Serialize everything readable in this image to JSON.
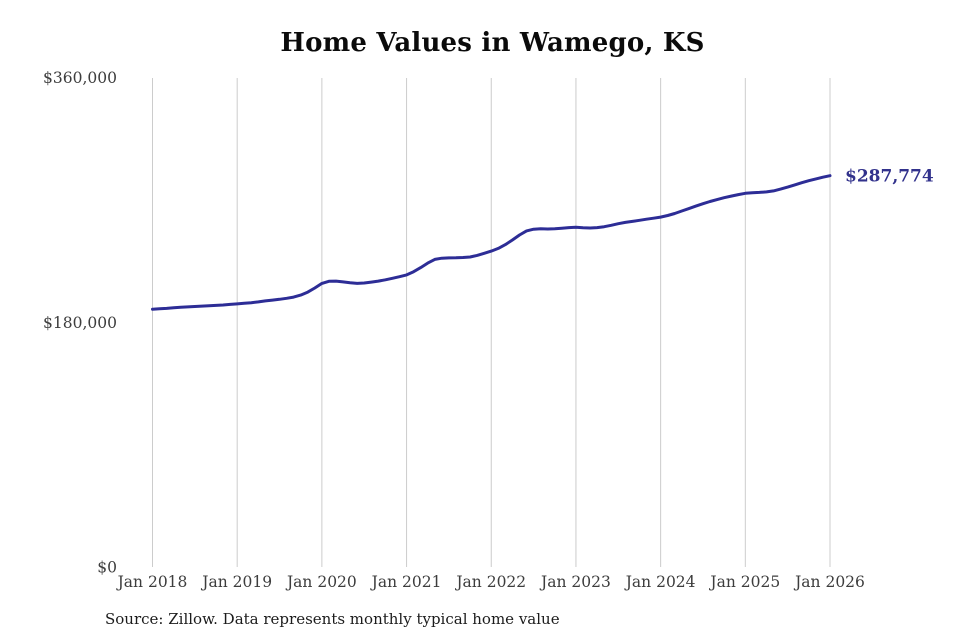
{
  "chart": {
    "title": "Home Values in Wamego, KS",
    "source_note": "Source: Zillow. Data represents monthly typical home value",
    "end_label": "$287,774"
  },
  "colors": {
    "line": "#2d2d96",
    "end_label": "#32328c",
    "gridline": "#cccccc",
    "tick_label": "#3d3d3d",
    "title": "#0b0b0b"
  },
  "chart_data": {
    "type": "line",
    "title": "Home Values in Wamego, KS",
    "series_name": "Monthly typical home value (USD)",
    "frequency": "monthly",
    "x_start": "Jan 2018",
    "x_end": "Jan 2026",
    "x_tick_labels": [
      "Jan 2018",
      "Jan 2019",
      "Jan 2020",
      "Jan 2021",
      "Jan 2022",
      "Jan 2023",
      "Jan 2024",
      "Jan 2025",
      "Jan 2026"
    ],
    "y_ticks": [
      {
        "label": "$360,000",
        "value": 360000
      },
      {
        "label": "$180,000",
        "value": 180000
      },
      {
        "label": "$0",
        "value": 0
      }
    ],
    "ylim": [
      0,
      360000
    ],
    "grid": "vertical-only",
    "legend": "none",
    "values": [
      189600,
      189900,
      190200,
      190600,
      191000,
      191300,
      191600,
      191900,
      192100,
      192400,
      192700,
      193100,
      193500,
      193900,
      194400,
      195000,
      195700,
      196300,
      196900,
      197600,
      198500,
      200000,
      202200,
      205200,
      208600,
      210100,
      210300,
      209700,
      209000,
      208600,
      208900,
      209500,
      210300,
      211200,
      212300,
      213500,
      214800,
      217200,
      220200,
      223500,
      226200,
      227100,
      227300,
      227400,
      227600,
      228000,
      229200,
      230700,
      232300,
      234300,
      237100,
      240500,
      244200,
      247200,
      248400,
      248700,
      248600,
      248800,
      249200,
      249600,
      249900,
      249500,
      249300,
      249600,
      250300,
      251300,
      252500,
      253400,
      254200,
      255000,
      255800,
      256500,
      257300,
      258500,
      260000,
      261800,
      263600,
      265400,
      267200,
      268800,
      270200,
      271600,
      272800,
      273900,
      274800,
      275300,
      275500,
      275900,
      276600,
      277900,
      279400,
      281000,
      282600,
      284100,
      285400,
      286700,
      287774
    ],
    "end_annotation": {
      "label": "$287,774",
      "value": 287774,
      "x": "Jan 2026"
    }
  }
}
